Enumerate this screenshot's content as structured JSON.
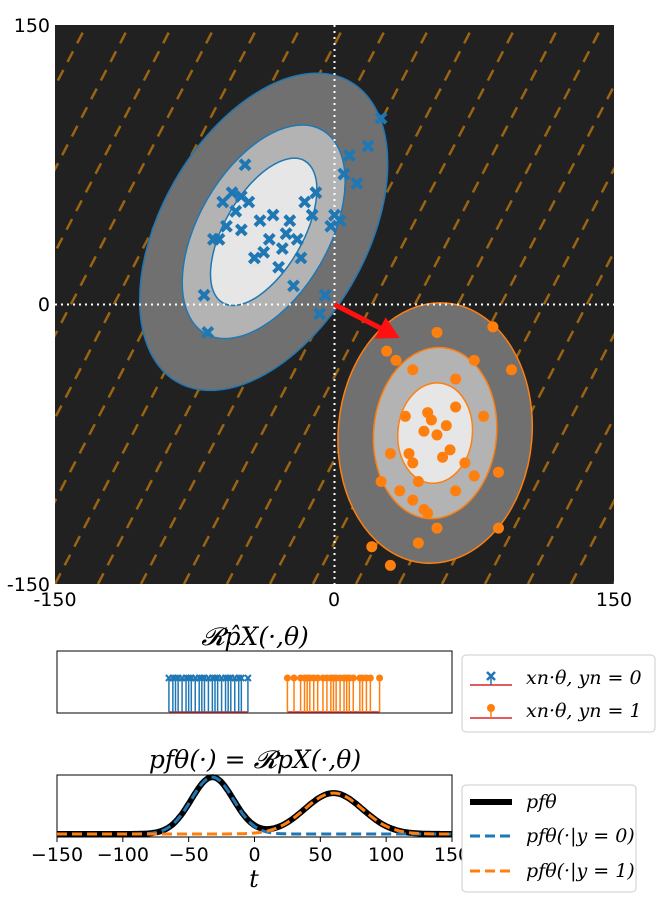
{
  "chart_data": [
    {
      "type": "scatter",
      "title": "",
      "xlim": [
        -150,
        150
      ],
      "ylim": [
        -150,
        150
      ],
      "xticks": [
        "-150",
        "0",
        "150"
      ],
      "yticks": [
        "150",
        "0",
        "-150"
      ],
      "background": "#212121",
      "hatch_color": "#b07010",
      "arrow": {
        "from": [
          0,
          0
        ],
        "to": [
          35,
          -18
        ],
        "color": "#ff1111"
      },
      "series": [
        {
          "color": "#1f77b4",
          "marker": "x",
          "points": [
            [
              -70,
              5
            ],
            [
              -68,
              -15
            ],
            [
              -65,
              35
            ],
            [
              -62,
              35
            ],
            [
              -60,
              55
            ],
            [
              -58,
              42
            ],
            [
              -55,
              60
            ],
            [
              -53,
              50
            ],
            [
              -50,
              58
            ],
            [
              -50,
              40
            ],
            [
              -48,
              75
            ],
            [
              -46,
              55
            ],
            [
              -43,
              25
            ],
            [
              -40,
              45
            ],
            [
              -38,
              28
            ],
            [
              -35,
              35
            ],
            [
              -33,
              48
            ],
            [
              -30,
              20
            ],
            [
              -28,
              30
            ],
            [
              -26,
              38
            ],
            [
              -24,
              45
            ],
            [
              -22,
              10
            ],
            [
              -20,
              35
            ],
            [
              -18,
              25
            ],
            [
              -16,
              55
            ],
            [
              -12,
              48
            ],
            [
              -10,
              60
            ],
            [
              -8,
              -5
            ],
            [
              -5,
              5
            ],
            [
              -2,
              42
            ],
            [
              0,
              48
            ],
            [
              3,
              45
            ],
            [
              5,
              70
            ],
            [
              8,
              80
            ],
            [
              12,
              65
            ],
            [
              18,
              85
            ],
            [
              25,
              100
            ]
          ],
          "ellipses": [
            {
              "center": [
                -38,
                39
              ],
              "rx": 21,
              "ry": 44,
              "angle_deg": 30,
              "fill": "#e6e6e6"
            },
            {
              "center": [
                -38,
                39
              ],
              "rx": 35,
              "ry": 63,
              "angle_deg": 30,
              "fill": "#b3b3b3"
            },
            {
              "center": [
                -38,
                39
              ],
              "rx": 55,
              "ry": 93,
              "angle_deg": 30,
              "fill": "#707070"
            }
          ]
        },
        {
          "color": "#ff7f0e",
          "marker": "o",
          "points": [
            [
              28,
              -25
            ],
            [
              33,
              -30
            ],
            [
              42,
              -35
            ],
            [
              55,
              -15
            ],
            [
              65,
              -40
            ],
            [
              75,
              -30
            ],
            [
              85,
              -12
            ],
            [
              95,
              -35
            ],
            [
              38,
              -60
            ],
            [
              40,
              -80
            ],
            [
              42,
              -85
            ],
            [
              45,
              -95
            ],
            [
              48,
              -68
            ],
            [
              50,
              -58
            ],
            [
              52,
              -62
            ],
            [
              55,
              -70
            ],
            [
              58,
              -82
            ],
            [
              60,
              -65
            ],
            [
              62,
              -78
            ],
            [
              65,
              -55
            ],
            [
              70,
              -85
            ],
            [
              75,
              -92
            ],
            [
              80,
              -60
            ],
            [
              88,
              -90
            ],
            [
              30,
              -80
            ],
            [
              25,
              -95
            ],
            [
              35,
              -100
            ],
            [
              42,
              -105
            ],
            [
              48,
              -110
            ],
            [
              50,
              -112
            ],
            [
              55,
              -120
            ],
            [
              30,
              -140
            ],
            [
              20,
              -130
            ],
            [
              88,
              -120
            ],
            [
              65,
              -100
            ],
            [
              45,
              -128
            ]
          ],
          "ellipses": [
            {
              "center": [
                54,
                -69
              ],
              "rx": 20,
              "ry": 27,
              "angle_deg": 5,
              "fill": "#e6e6e6"
            },
            {
              "center": [
                54,
                -69
              ],
              "rx": 33,
              "ry": 46,
              "angle_deg": 5,
              "fill": "#b3b3b3"
            },
            {
              "center": [
                54,
                -69
              ],
              "rx": 52,
              "ry": 70,
              "angle_deg": 5,
              "fill": "#707070"
            }
          ]
        }
      ]
    },
    {
      "type": "stem",
      "title": "𝓡p̂X(·,θ)",
      "xlim": [
        -150,
        150
      ],
      "series": [
        {
          "name": "xn·θ, yn = 0",
          "color": "#1f77b4",
          "marker": "x",
          "values": [
            -65,
            -62,
            -60,
            -58,
            -55,
            -52,
            -50,
            -48,
            -45,
            -42,
            -40,
            -38,
            -35,
            -32,
            -30,
            -28,
            -25,
            -22,
            -20,
            -18,
            -15,
            -12,
            -10,
            -5
          ]
        },
        {
          "name": "xn·θ, yn = 1",
          "color": "#ff7f0e",
          "marker": "o",
          "values": [
            25,
            30,
            35,
            38,
            40,
            42,
            45,
            48,
            52,
            55,
            58,
            60,
            62,
            65,
            68,
            70,
            72,
            75,
            80,
            82,
            85,
            88,
            95
          ]
        }
      ],
      "legend": {
        "location": "right",
        "entries": [
          "xn·θ, yn = 0",
          "xn·θ, yn = 1"
        ]
      }
    },
    {
      "type": "line",
      "title": "pfθ(·) = 𝓡pX(·,θ)",
      "xlabel": "t",
      "xlim": [
        -150,
        150
      ],
      "xticks": [
        "−150",
        "−100",
        "−50",
        "0",
        "50",
        "100",
        "150"
      ],
      "xtick_values": [
        -150,
        -100,
        -50,
        0,
        50,
        100,
        150
      ],
      "components": [
        {
          "name": "y=0",
          "mean": -32,
          "sd": 16,
          "weight": 0.5,
          "peak_rel": 1.0,
          "color": "#1f77b4"
        },
        {
          "name": "y=1",
          "mean": 60,
          "sd": 22,
          "weight": 0.5,
          "peak_rel": 0.72,
          "color": "#ff7f0e"
        }
      ],
      "legend": {
        "location": "right",
        "entries": [
          "pfθ",
          "pfθ(·|y = 0)",
          "pfθ(·|y = 1)"
        ]
      }
    }
  ]
}
